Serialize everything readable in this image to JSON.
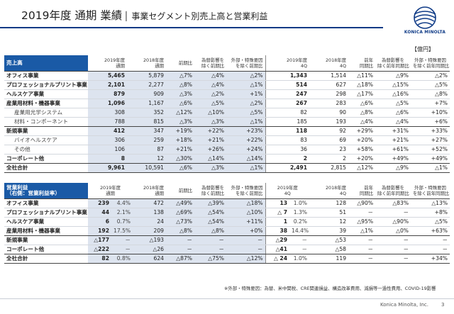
{
  "title": {
    "main": "2019年度 通期 業績",
    "sub": "│ 事業セグメント別売上高と営業利益"
  },
  "logo": {
    "text": "KONICA MINOLTA"
  },
  "unit": "【億円】",
  "t1": {
    "headers": [
      "売上高",
      "2019年度\n通期",
      "2018年度\n通期",
      "前期比",
      "為替影響を\n除く前期比",
      "外部・特殊要因\nを除く前期比",
      "2019年度\n4Q",
      "2018年度\n4Q",
      "前年\n同期比",
      "為替影響を\n除く前年同期比",
      "外部・特殊要因\nを除く前年同期比"
    ],
    "rows": [
      [
        "オフィス事業",
        "5,465",
        "5,879",
        "△7%",
        "△4%",
        "△2%",
        "1,343",
        "1,514",
        "△11%",
        "△9%",
        "△2%"
      ],
      [
        "プロフェッショナルプリント事業",
        "2,101",
        "2,277",
        "△8%",
        "△4%",
        "△1%",
        "514",
        "627",
        "△18%",
        "△15%",
        "△5%"
      ],
      [
        "ヘルスケア事業",
        "879",
        "909",
        "△3%",
        "△2%",
        "+1%",
        "247",
        "298",
        "△17%",
        "△16%",
        "△8%"
      ],
      [
        "産業用材料・機器事業",
        "1,096",
        "1,167",
        "△6%",
        "△5%",
        "△2%",
        "267",
        "283",
        "△6%",
        "△5%",
        "+7%"
      ],
      [
        "産業用光学システム",
        "308",
        "352",
        "△12%",
        "△10%",
        "△5%",
        "82",
        "90",
        "△8%",
        "△6%",
        "+10%"
      ],
      [
        "材料・コンポーネント",
        "788",
        "815",
        "△3%",
        "△3%",
        "△1%",
        "185",
        "193",
        "△4%",
        "△4%",
        "+6%"
      ],
      [
        "新規事業",
        "412",
        "347",
        "+19%",
        "+22%",
        "+23%",
        "118",
        "92",
        "+29%",
        "+31%",
        "+33%"
      ],
      [
        "バイオヘルスケア",
        "306",
        "259",
        "+18%",
        "+21%",
        "+22%",
        "83",
        "69",
        "+20%",
        "+21%",
        "+27%"
      ],
      [
        "その他",
        "106",
        "87",
        "+21%",
        "+26%",
        "+24%",
        "36",
        "23",
        "+58%",
        "+61%",
        "+52%"
      ],
      [
        "コーポレート他",
        "8",
        "12",
        "△30%",
        "△14%",
        "△14%",
        "2",
        "2",
        "+20%",
        "+49%",
        "+49%"
      ],
      [
        "全社合計",
        "9,961",
        "10,591",
        "△6%",
        "△3%",
        "△1%",
        "2,491",
        "2,815",
        "△12%",
        "△9%",
        "△1%"
      ]
    ]
  },
  "t2": {
    "headers": [
      "営業利益\n（右側：営業利益率）",
      "2019年度\n通期",
      "2018年度\n通期",
      "前期比",
      "為替影響を\n除く前期比",
      "外部・特殊要因\nを除く前期比",
      "2019年度\n4Q",
      "2018年度\n4Q",
      "前年\n同期比",
      "為替影響を\n除く前年同期比",
      "外部・特殊要因\nを除く前年同期比"
    ],
    "rows": [
      [
        "オフィス事業",
        "239",
        "4.4%",
        "472",
        "△49%",
        "△39%",
        "△18%",
        "13",
        "1.0%",
        "128",
        "△90%",
        "△83%",
        "△13%"
      ],
      [
        "プロフェッショナルプリント事業",
        "44",
        "2.1%",
        "138",
        "△69%",
        "△54%",
        "△10%",
        "△ 7",
        "1.3%",
        "51",
        "－",
        "－",
        "+8%"
      ],
      [
        "ヘルスケア事業",
        "6",
        "0.7%",
        "24",
        "△73%",
        "△54%",
        "+11%",
        "1",
        "0.2%",
        "12",
        "△95%",
        "△90%",
        "△5%"
      ],
      [
        "産業用材料・機器事業",
        "192",
        "17.5%",
        "209",
        "△8%",
        "△8%",
        "+0%",
        "38",
        "14.4%",
        "39",
        "△1%",
        "△0%",
        "+63%"
      ],
      [
        "新規事業",
        "△177",
        "－",
        "△193",
        "－",
        "－",
        "－",
        "△29",
        "－",
        "△53",
        "－",
        "－",
        "－"
      ],
      [
        "コーポレート他",
        "△222",
        "－",
        "△26",
        "－",
        "－",
        "－",
        "△41",
        "－",
        "△58",
        "－",
        "－",
        "－"
      ],
      [
        "全社合計",
        "82",
        "0.8%",
        "624",
        "△87%",
        "△75%",
        "△12%",
        "△ 24",
        "1.0%",
        "119",
        "－",
        "－",
        "+34%"
      ]
    ]
  },
  "note": "※外部・特殊要因：為替、米中関税、CRE関連損益、構造改革費用、減損等一過性費用、COVID-19影響",
  "footer": {
    "company": "Konica Minolta, Inc.",
    "page": "3"
  },
  "colors": {
    "navy": "#0e3a86",
    "header_blue": "#1a5aa6",
    "shade": "#dde4ef"
  }
}
